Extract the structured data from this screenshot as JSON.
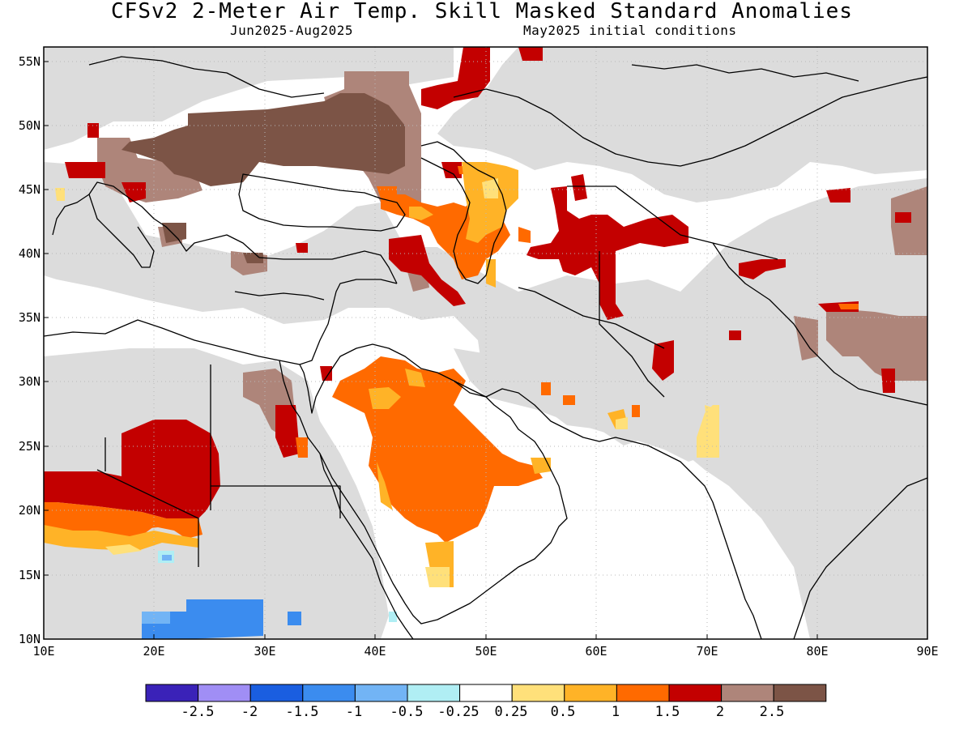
{
  "title": "CFSv2 2-Meter Air Temp. Skill Masked Standard Anomalies",
  "period": "Jun2025-Aug2025",
  "init": "May2025 initial conditions",
  "lat_labels": [
    "55N",
    "50N",
    "45N",
    "40N",
    "35N",
    "30N",
    "25N",
    "20N",
    "15N",
    "10N"
  ],
  "lon_labels": [
    "10E",
    "20E",
    "30E",
    "40E",
    "50E",
    "60E",
    "70E",
    "80E",
    "90E"
  ],
  "colorbar": {
    "colors": [
      "#3a22b8",
      "#a08ef5",
      "#1a5ee0",
      "#3b8cef",
      "#72b4f5",
      "#b0eef4",
      "#ffffff",
      "#ffe07a",
      "#ffb327",
      "#ff6a00",
      "#c30000",
      "#ae857a",
      "#7c5446"
    ],
    "labels": [
      "-2.5",
      "-2",
      "-1.5",
      "-1",
      "-0.5",
      "-0.25",
      "0.25",
      "0.5",
      "1",
      "1.5",
      "2",
      "2.5"
    ]
  },
  "colors": {
    "masked": "#dcdcdc",
    "land_blank": "#ffffff"
  }
}
